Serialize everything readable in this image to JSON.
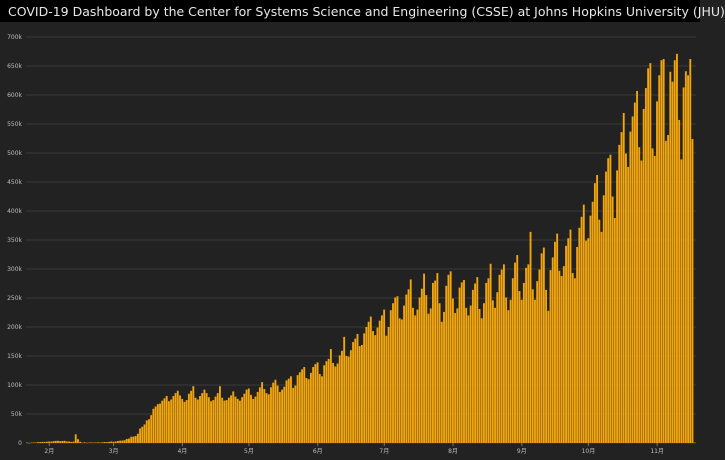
{
  "header": {
    "title": "COVID-19 Dashboard by the Center for Systems Science and Engineering (CSSE) at Johns Hopkins University (JHU)",
    "logo_icon": "jhu-shield-icon"
  },
  "colors": {
    "bar": "#f2a60c",
    "background": "#222222",
    "header": "#000000",
    "grid": "#3a3a3a"
  },
  "chart_data": {
    "type": "bar",
    "title": "",
    "xlabel": "",
    "ylabel": "",
    "ylim": [
      0,
      700000
    ],
    "yticks": [
      {
        "value": 0,
        "label": "0"
      },
      {
        "value": 50000,
        "label": "50k"
      },
      {
        "value": 100000,
        "label": "100k"
      },
      {
        "value": 150000,
        "label": "150k"
      },
      {
        "value": 200000,
        "label": "200k"
      },
      {
        "value": 250000,
        "label": "250k"
      },
      {
        "value": 300000,
        "label": "300k"
      },
      {
        "value": 350000,
        "label": "350k"
      },
      {
        "value": 400000,
        "label": "400k"
      },
      {
        "value": 450000,
        "label": "450k"
      },
      {
        "value": 500000,
        "label": "500k"
      },
      {
        "value": 550000,
        "label": "550k"
      },
      {
        "value": 600000,
        "label": "600k"
      },
      {
        "value": 650000,
        "label": "650k"
      },
      {
        "value": 700000,
        "label": "700k"
      }
    ],
    "xticks": [
      {
        "date": "2020-02-01",
        "label": "2月"
      },
      {
        "date": "2020-03-01",
        "label": "3月"
      },
      {
        "date": "2020-04-01",
        "label": "4月"
      },
      {
        "date": "2020-05-01",
        "label": "5月"
      },
      {
        "date": "2020-06-01",
        "label": "6月"
      },
      {
        "date": "2020-07-01",
        "label": "7月"
      },
      {
        "date": "2020-08-01",
        "label": "8月"
      },
      {
        "date": "2020-09-01",
        "label": "9月"
      },
      {
        "date": "2020-10-01",
        "label": "10月"
      },
      {
        "date": "2020-11-01",
        "label": "11月"
      }
    ],
    "series": [
      {
        "x_start": "2020-01-22",
        "values": [
          600,
          100,
          600,
          800,
          800,
          1500,
          1700,
          2000,
          1800,
          2100,
          2600,
          2400,
          3200,
          3700,
          3800,
          3200,
          3500,
          3700,
          2600,
          2500,
          2000,
          2300,
          15000,
          6500,
          2100,
          500,
          1200,
          400,
          700,
          1000,
          600,
          800,
          1100,
          800,
          1200,
          1600,
          1500,
          1900,
          2600,
          2200,
          2600,
          3500,
          4000,
          4300,
          4800,
          7000,
          7600,
          10800,
          11000,
          12100,
          16000,
          25000,
          28000,
          32000,
          39000,
          41000,
          48000,
          59000,
          63000,
          67000,
          68000,
          73000,
          77000,
          81000,
          72000,
          75000,
          81000,
          86000,
          90000,
          82000,
          76000,
          71000,
          74000,
          85000,
          90000,
          98000,
          78000,
          75000,
          81000,
          86000,
          92000,
          86000,
          79000,
          72000,
          74000,
          80000,
          86000,
          98000,
          78000,
          73000,
          74000,
          78000,
          82000,
          89000,
          80000,
          76000,
          73000,
          79000,
          85000,
          92000,
          94000,
          83000,
          76000,
          80000,
          88000,
          96000,
          105000,
          93000,
          86000,
          84000,
          96000,
          104000,
          109000,
          99000,
          88000,
          92000,
          97000,
          108000,
          111000,
          115000,
          95000,
          99000,
          117000,
          122000,
          127000,
          131000,
          112000,
          110000,
          121000,
          131000,
          136000,
          139000,
          119000,
          115000,
          134000,
          141000,
          145000,
          162000,
          138000,
          132000,
          137000,
          151000,
          159000,
          183000,
          150000,
          149000,
          160000,
          174000,
          180000,
          188000,
          167000,
          169000,
          189000,
          200000,
          209000,
          218000,
          193000,
          186000,
          199000,
          211000,
          220000,
          230000,
          185000,
          200000,
          229000,
          241000,
          251000,
          253000,
          215000,
          213000,
          237000,
          256000,
          265000,
          282000,
          233000,
          220000,
          230000,
          251000,
          266000,
          292000,
          255000,
          223000,
          232000,
          276000,
          280000,
          293000,
          241000,
          209000,
          226000,
          271000,
          290000,
          296000,
          249000,
          224000,
          232000,
          268000,
          277000,
          281000,
          233000,
          220000,
          237000,
          264000,
          275000,
          286000,
          231000,
          215000,
          241000,
          276000,
          284000,
          309000,
          246000,
          233000,
          260000,
          290000,
          299000,
          308000,
          251000,
          229000,
          247000,
          284000,
          311000,
          324000,
          262000,
          247000,
          276000,
          302000,
          308000,
          364000,
          265000,
          247000,
          279000,
          299000,
          327000,
          337000,
          264000,
          228000,
          298000,
          320000,
          347000,
          361000,
          297000,
          288000,
          305000,
          340000,
          353000,
          368000,
          293000,
          284000,
          338000,
          371000,
          390000,
          411000,
          349000,
          353000,
          392000,
          416000,
          448000,
          462000,
          385000,
          364000,
          427000,
          468000,
          491000,
          497000,
          425000,
          388000,
          470000,
          514000,
          536000,
          569000,
          499000,
          476000,
          537000,
          563000,
          587000,
          607000,
          510000,
          487000,
          576000,
          612000,
          646000,
          655000,
          508000,
          495000,
          589000,
          634000,
          660000,
          662000,
          521000,
          531000,
          640000,
          623000,
          660000,
          671000,
          557000,
          489000,
          613000,
          641000,
          634000,
          662000,
          524000,
          596
        ]
      }
    ]
  }
}
